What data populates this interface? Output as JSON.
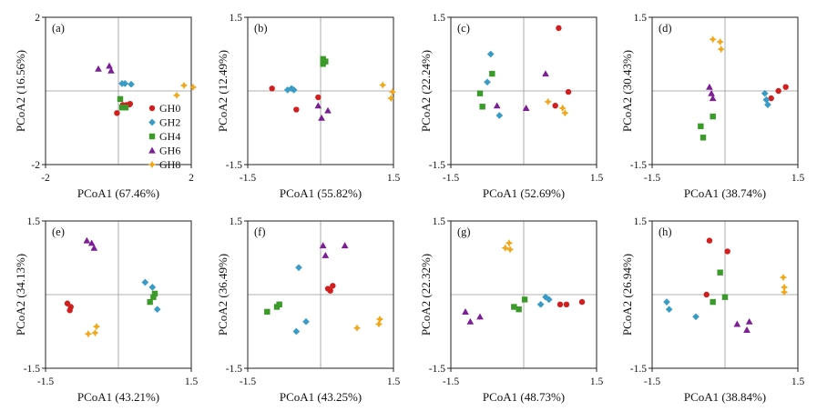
{
  "legend": [
    {
      "name": "GH0",
      "color": "#d01f1f",
      "marker": "circle"
    },
    {
      "name": "GH2",
      "color": "#3a9bc5",
      "marker": "diamond"
    },
    {
      "name": "GH4",
      "color": "#3a9a2a",
      "marker": "square"
    },
    {
      "name": "GH6",
      "color": "#7b1f95",
      "marker": "triangle"
    },
    {
      "name": "GH8",
      "color": "#f0a81a",
      "marker": "star"
    }
  ],
  "chart_data": [
    {
      "type": "scatter",
      "panel": "(a)",
      "xlabel": "PCoA1 (67.46%)",
      "ylabel": "PCoA2 (16.56%)",
      "xlim": [
        -2,
        2
      ],
      "ylim": [
        -2,
        2
      ],
      "xticks": [
        "-2",
        "2"
      ],
      "yticks": [
        "-2",
        "2"
      ],
      "series": [
        {
          "name": "GH0",
          "points": [
            [
              -0.04,
              -0.6
            ],
            [
              0.12,
              -0.38
            ],
            [
              0.22,
              -0.38
            ],
            [
              0.3,
              -0.37
            ],
            [
              0.32,
              -0.35
            ]
          ]
        },
        {
          "name": "GH2",
          "points": [
            [
              0.1,
              0.2
            ],
            [
              0.18,
              0.2
            ],
            [
              0.35,
              0.18
            ]
          ]
        },
        {
          "name": "GH4",
          "points": [
            [
              0.05,
              -0.22
            ],
            [
              0.1,
              -0.45
            ],
            [
              0.2,
              -0.45
            ]
          ]
        },
        {
          "name": "GH6",
          "points": [
            [
              -0.55,
              0.6
            ],
            [
              -0.25,
              0.68
            ],
            [
              -0.2,
              0.55
            ]
          ]
        },
        {
          "name": "GH8",
          "points": [
            [
              1.8,
              0.15
            ],
            [
              2.05,
              0.1
            ],
            [
              1.6,
              -0.12
            ]
          ]
        }
      ]
    },
    {
      "type": "scatter",
      "panel": "(b)",
      "xlabel": "PCoA1 (55.82%)",
      "ylabel": "PCoA2 (12.49%)",
      "xlim": [
        -1.5,
        1.5
      ],
      "ylim": [
        -1.5,
        1.5
      ],
      "xticks": [
        "-1.5",
        "1.5"
      ],
      "yticks": [
        "-1.5",
        "1.5"
      ],
      "series": [
        {
          "name": "GH0",
          "points": [
            [
              -1.0,
              0.05
            ],
            [
              -0.5,
              -0.38
            ],
            [
              -0.05,
              -0.13
            ]
          ]
        },
        {
          "name": "GH2",
          "points": [
            [
              -0.68,
              0.02
            ],
            [
              -0.6,
              0.05
            ],
            [
              -0.55,
              0.02
            ]
          ]
        },
        {
          "name": "GH4",
          "points": [
            [
              0.05,
              0.55
            ],
            [
              0.1,
              0.6
            ],
            [
              0.05,
              0.65
            ]
          ]
        },
        {
          "name": "GH6",
          "points": [
            [
              -0.05,
              -0.3
            ],
            [
              0.02,
              -0.55
            ],
            [
              0.15,
              -0.4
            ]
          ]
        },
        {
          "name": "GH8",
          "points": [
            [
              1.28,
              0.12
            ],
            [
              1.48,
              -0.02
            ],
            [
              1.45,
              -0.15
            ]
          ]
        }
      ]
    },
    {
      "type": "scatter",
      "panel": "(c)",
      "xlabel": "PCoA1 (52.69%)",
      "ylabel": "PCoA2 (22.24%)",
      "xlim": [
        -1.5,
        1.5
      ],
      "ylim": [
        -1.5,
        1.5
      ],
      "xticks": [
        "-1.5",
        "1.5"
      ],
      "yticks": [
        "-1.5",
        "1.5"
      ],
      "series": [
        {
          "name": "GH0",
          "points": [
            [
              0.72,
              1.28
            ],
            [
              0.92,
              -0.02
            ],
            [
              0.65,
              -0.3
            ]
          ]
        },
        {
          "name": "GH2",
          "points": [
            [
              -0.75,
              0.18
            ],
            [
              -0.68,
              0.75
            ],
            [
              -0.5,
              -0.5
            ]
          ]
        },
        {
          "name": "GH4",
          "points": [
            [
              -0.9,
              -0.05
            ],
            [
              -0.85,
              -0.32
            ],
            [
              -0.65,
              0.35
            ]
          ]
        },
        {
          "name": "GH6",
          "points": [
            [
              -0.55,
              -0.3
            ],
            [
              0.05,
              -0.35
            ],
            [
              0.45,
              0.35
            ]
          ]
        },
        {
          "name": "GH8",
          "points": [
            [
              0.5,
              -0.22
            ],
            [
              0.8,
              -0.35
            ],
            [
              0.85,
              -0.45
            ]
          ]
        }
      ]
    },
    {
      "type": "scatter",
      "panel": "(d)",
      "xlabel": "PCoA1 (38.74%)",
      "ylabel": "PCoA2 (30.43%)",
      "xlim": [
        -1.5,
        1.5
      ],
      "ylim": [
        -1.5,
        1.5
      ],
      "xticks": [
        "-1.5",
        "1.5"
      ],
      "yticks": [
        "-1.5",
        "1.5"
      ],
      "series": [
        {
          "name": "GH0",
          "points": [
            [
              0.95,
              -0.15
            ],
            [
              1.1,
              0.0
            ],
            [
              1.25,
              0.08
            ]
          ]
        },
        {
          "name": "GH2",
          "points": [
            [
              0.82,
              -0.05
            ],
            [
              0.85,
              -0.18
            ],
            [
              0.88,
              -0.28
            ]
          ]
        },
        {
          "name": "GH4",
          "points": [
            [
              -0.5,
              -0.72
            ],
            [
              -0.45,
              -0.95
            ],
            [
              -0.25,
              -0.52
            ]
          ]
        },
        {
          "name": "GH6",
          "points": [
            [
              -0.32,
              0.08
            ],
            [
              -0.28,
              -0.05
            ],
            [
              -0.25,
              -0.15
            ]
          ]
        },
        {
          "name": "GH8",
          "points": [
            [
              -0.25,
              1.05
            ],
            [
              -0.1,
              1.0
            ],
            [
              -0.08,
              0.85
            ]
          ]
        }
      ]
    },
    {
      "type": "scatter",
      "panel": "(e)",
      "xlabel": "PCoA1 (43.21%)",
      "ylabel": "PCoA2 (34.13%)",
      "xlim": [
        -1.5,
        1.5
      ],
      "ylim": [
        -1.5,
        1.5
      ],
      "xticks": [
        "-1.5",
        "1.5"
      ],
      "yticks": [
        "-1.5",
        "1.5"
      ],
      "series": [
        {
          "name": "GH0",
          "points": [
            [
              -1.05,
              -0.18
            ],
            [
              -0.98,
              -0.25
            ],
            [
              -1.0,
              -0.32
            ]
          ]
        },
        {
          "name": "GH2",
          "points": [
            [
              0.55,
              0.25
            ],
            [
              0.7,
              0.15
            ],
            [
              0.8,
              -0.3
            ]
          ]
        },
        {
          "name": "GH4",
          "points": [
            [
              0.65,
              -0.15
            ],
            [
              0.72,
              -0.05
            ],
            [
              0.75,
              0.02
            ]
          ]
        },
        {
          "name": "GH6",
          "points": [
            [
              -0.65,
              1.1
            ],
            [
              -0.55,
              1.05
            ],
            [
              -0.5,
              0.95
            ]
          ]
        },
        {
          "name": "GH8",
          "points": [
            [
              -0.62,
              -0.8
            ],
            [
              -0.48,
              -0.78
            ],
            [
              -0.45,
              -0.65
            ]
          ]
        }
      ]
    },
    {
      "type": "scatter",
      "panel": "(f)",
      "xlabel": "PCoA1 (43.25%)",
      "ylabel": "PCoA2 (36.49%)",
      "xlim": [
        -1.5,
        1.5
      ],
      "ylim": [
        -1.5,
        1.5
      ],
      "xticks": [
        "-1.5",
        "1.5"
      ],
      "yticks": [
        "-1.5",
        "1.5"
      ],
      "series": [
        {
          "name": "GH0",
          "points": [
            [
              0.15,
              0.12
            ],
            [
              0.2,
              0.08
            ],
            [
              0.25,
              0.18
            ]
          ]
        },
        {
          "name": "GH2",
          "points": [
            [
              -0.45,
              0.55
            ],
            [
              -0.5,
              -0.75
            ],
            [
              -0.3,
              -0.55
            ]
          ]
        },
        {
          "name": "GH4",
          "points": [
            [
              -1.1,
              -0.35
            ],
            [
              -0.9,
              -0.25
            ],
            [
              -0.85,
              -0.2
            ]
          ]
        },
        {
          "name": "GH6",
          "points": [
            [
              0.05,
              1.0
            ],
            [
              0.1,
              0.8
            ],
            [
              0.5,
              1.0
            ]
          ]
        },
        {
          "name": "GH8",
          "points": [
            [
              0.75,
              -0.68
            ],
            [
              1.2,
              -0.6
            ],
            [
              1.22,
              -0.5
            ]
          ]
        }
      ]
    },
    {
      "type": "scatter",
      "panel": "(g)",
      "xlabel": "PCoA1 (48.73%)",
      "ylabel": "PCoA2 (22.32%)",
      "xlim": [
        -1.5,
        1.5
      ],
      "ylim": [
        -1.5,
        1.5
      ],
      "xticks": [
        "-1.5",
        "1.5"
      ],
      "yticks": [
        "-1.5",
        "1.5"
      ],
      "series": [
        {
          "name": "GH0",
          "points": [
            [
              0.75,
              -0.2
            ],
            [
              0.88,
              -0.2
            ],
            [
              1.2,
              -0.15
            ]
          ]
        },
        {
          "name": "GH2",
          "points": [
            [
              0.35,
              -0.2
            ],
            [
              0.45,
              -0.05
            ],
            [
              0.52,
              -0.1
            ]
          ]
        },
        {
          "name": "GH4",
          "points": [
            [
              -0.2,
              -0.25
            ],
            [
              -0.1,
              -0.3
            ],
            [
              0.02,
              -0.1
            ]
          ]
        },
        {
          "name": "GH6",
          "points": [
            [
              -1.2,
              -0.35
            ],
            [
              -1.1,
              -0.55
            ],
            [
              -0.9,
              -0.45
            ]
          ]
        },
        {
          "name": "GH8",
          "points": [
            [
              -0.38,
              0.95
            ],
            [
              -0.3,
              1.05
            ],
            [
              -0.28,
              0.92
            ]
          ]
        }
      ]
    },
    {
      "type": "scatter",
      "panel": "(h)",
      "xlabel": "PCoA1 (38.84%)",
      "ylabel": "PCoA2 (26.94%)",
      "xlim": [
        -1.5,
        1.5
      ],
      "ylim": [
        -1.5,
        1.5
      ],
      "xticks": [
        "-1.5",
        "1.5"
      ],
      "yticks": [
        "-1.5",
        "1.5"
      ],
      "series": [
        {
          "name": "GH0",
          "points": [
            [
              -0.32,
              1.1
            ],
            [
              0.05,
              0.88
            ],
            [
              -0.38,
              0.0
            ]
          ]
        },
        {
          "name": "GH2",
          "points": [
            [
              -1.2,
              -0.15
            ],
            [
              -1.15,
              -0.3
            ],
            [
              -0.6,
              -0.45
            ]
          ]
        },
        {
          "name": "GH4",
          "points": [
            [
              -0.25,
              -0.15
            ],
            [
              -0.1,
              0.45
            ],
            [
              0.0,
              -0.05
            ]
          ]
        },
        {
          "name": "GH6",
          "points": [
            [
              0.25,
              -0.6
            ],
            [
              0.5,
              -0.55
            ],
            [
              0.45,
              -0.72
            ]
          ]
        },
        {
          "name": "GH8",
          "points": [
            [
              1.2,
              0.35
            ],
            [
              1.22,
              0.15
            ],
            [
              1.22,
              0.05
            ]
          ]
        }
      ]
    }
  ]
}
